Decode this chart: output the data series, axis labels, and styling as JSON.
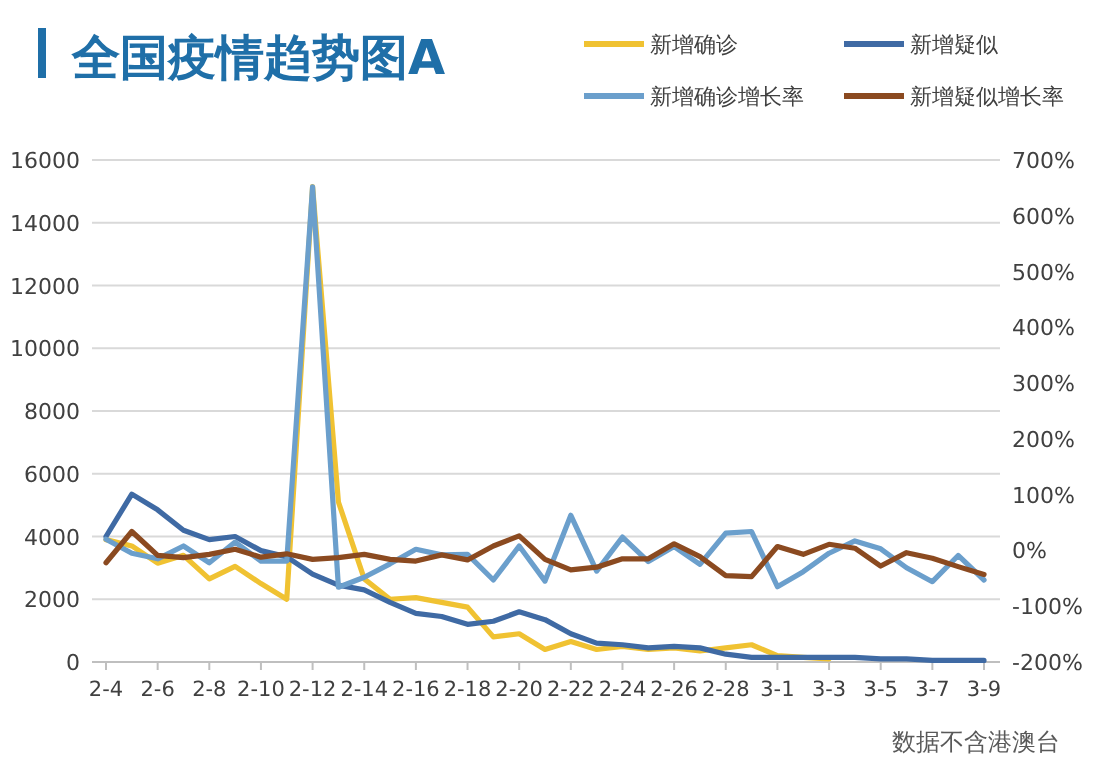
{
  "chart_data": {
    "type": "line",
    "title": "全国疫情趋势图A",
    "categories": [
      "2-4",
      null,
      "2-6",
      null,
      "2-8",
      null,
      "2-10",
      null,
      "2-12",
      null,
      "2-14",
      null,
      "2-16",
      null,
      "2-18",
      null,
      "2-20",
      null,
      "2-22",
      null,
      "2-24",
      null,
      "2-26",
      null,
      "2-28",
      null,
      "3-1",
      null,
      "3-3",
      null,
      "3-5",
      null,
      "3-7",
      null,
      "3-9"
    ],
    "series": [
      {
        "name": "新增确诊",
        "color": "#f0c232",
        "values": [
          3900,
          3700,
          3150,
          3400,
          2650,
          3050,
          2500,
          2000,
          15150,
          5100,
          2650,
          2000,
          2050,
          1900,
          1750,
          800,
          900,
          400,
          650,
          400,
          500,
          400,
          450,
          350,
          450,
          550,
          200,
          150,
          100,
          null,
          null,
          null,
          null,
          null,
          null
        ]
      },
      {
        "name": "新增疑似",
        "color": "#3f6aa4",
        "values": [
          4000,
          5350,
          4850,
          4200,
          3900,
          4000,
          3550,
          3350,
          2800,
          2450,
          2300,
          1900,
          1550,
          1450,
          1200,
          1300,
          1600,
          1350,
          900,
          600,
          550,
          450,
          500,
          450,
          250,
          150,
          150,
          150,
          150,
          150,
          100,
          100,
          50,
          50,
          50
        ]
      },
      {
        "name": "新增确诊增长率",
        "color": "#6b9fcc",
        "axis": "y2",
        "values": [
          20,
          -5,
          -15,
          8,
          -22,
          15,
          -19,
          -19,
          652,
          -66,
          -48,
          -24,
          2,
          -8,
          -7,
          -53,
          8,
          -55,
          63,
          -37,
          24,
          -20,
          7,
          -25,
          31,
          34,
          -65,
          -38,
          -5,
          17,
          3,
          -31,
          -56,
          -9,
          -53
        ]
      },
      {
        "name": "新增疑似增长率",
        "color": "#8b4a20",
        "axis": "y2",
        "values": [
          -22,
          34,
          -9,
          -13,
          -7,
          2,
          -12,
          -6,
          -16,
          -13,
          -7,
          -16,
          -19,
          -8,
          -17,
          8,
          26,
          -16,
          -35,
          -30,
          -15,
          -15,
          12,
          -11,
          -45,
          -47,
          7,
          -7,
          11,
          4,
          -28,
          -4,
          -14,
          -29,
          -43
        ]
      }
    ],
    "ylim": [
      0,
      16000
    ],
    "yticks": [
      0,
      2000,
      4000,
      6000,
      8000,
      10000,
      12000,
      14000,
      16000
    ],
    "y2lim": [
      -200,
      700
    ],
    "y2ticks": [
      {
        "value": -200,
        "label": "-200%"
      },
      {
        "value": -100,
        "label": "-100%"
      },
      {
        "value": 0,
        "label": "0%"
      },
      {
        "value": 100,
        "label": "100%"
      },
      {
        "value": 200,
        "label": "200%"
      },
      {
        "value": 300,
        "label": "300%"
      },
      {
        "value": 400,
        "label": "400%"
      },
      {
        "value": 500,
        "label": "500%"
      },
      {
        "value": 600,
        "label": "600%"
      },
      {
        "value": 700,
        "label": "700%"
      }
    ],
    "grid": "y",
    "legend": "top right",
    "annotations": [
      "数据不含港澳台"
    ]
  }
}
